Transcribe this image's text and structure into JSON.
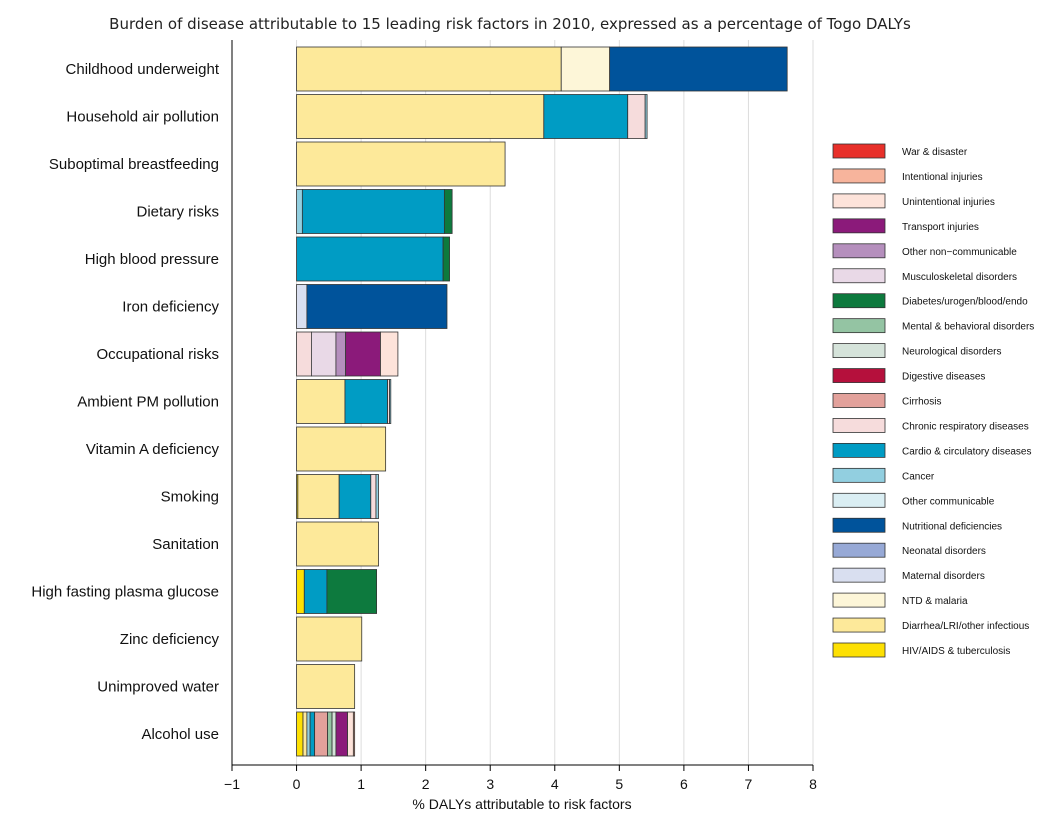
{
  "chart_data": {
    "type": "bar",
    "orientation": "horizontal",
    "stacked": true,
    "title": "Burden of disease attributable to 15 leading risk factors in 2010, expressed as a percentage of Togo DALYs",
    "xlabel": "% DALYs attributable to risk factors",
    "ylabel": "",
    "xlim": [
      -1,
      8
    ],
    "xticks": [
      -1,
      0,
      1,
      2,
      3,
      4,
      5,
      6,
      7,
      8
    ],
    "grid": "vertical",
    "legend_position": "right",
    "categories": [
      "Childhood underweight",
      "Household air pollution",
      "Suboptimal breastfeeding",
      "Dietary risks",
      "High blood pressure",
      "Iron deficiency",
      "Occupational risks",
      "Ambient PM pollution",
      "Vitamin A deficiency",
      "Smoking",
      "Sanitation",
      "High fasting plasma glucose",
      "Zinc deficiency",
      "Unimproved water",
      "Alcohol use"
    ],
    "legend": [
      {
        "name": "War & disaster",
        "color": "#e8302a"
      },
      {
        "name": "Intentional injuries",
        "color": "#f7b49c"
      },
      {
        "name": "Unintentional injuries",
        "color": "#fde3da"
      },
      {
        "name": "Transport injuries",
        "color": "#8b1a7a"
      },
      {
        "name": "Other non−communicable",
        "color": "#b58fbd"
      },
      {
        "name": "Musculoskeletal disorders",
        "color": "#e9d9e7"
      },
      {
        "name": "Diabetes/urogen/blood/endo",
        "color": "#0d7a3e"
      },
      {
        "name": "Mental & behavioral disorders",
        "color": "#94c4a3"
      },
      {
        "name": "Neurological disorders",
        "color": "#d5e3da"
      },
      {
        "name": "Digestive diseases",
        "color": "#b5103c"
      },
      {
        "name": "Cirrhosis",
        "color": "#e2a19b"
      },
      {
        "name": "Chronic respiratory diseases",
        "color": "#f6dcdc"
      },
      {
        "name": "Cardio & circulatory diseases",
        "color": "#009cc4"
      },
      {
        "name": "Cancer",
        "color": "#92cfe0"
      },
      {
        "name": "Other communicable",
        "color": "#daeef3"
      },
      {
        "name": "Nutritional deficiencies",
        "color": "#00539b"
      },
      {
        "name": "Neonatal disorders",
        "color": "#97a9d6"
      },
      {
        "name": "Maternal disorders",
        "color": "#d9dff0"
      },
      {
        "name": "NTD & malaria",
        "color": "#fdf6d8"
      },
      {
        "name": "Diarrhea/LRI/other infectious",
        "color": "#fde99a"
      },
      {
        "name": "HIV/AIDS & tuberculosis",
        "color": "#fde003"
      }
    ],
    "bars": [
      {
        "category": "Childhood underweight",
        "segments": [
          {
            "series": "Diarrhea/LRI/other infectious",
            "value": 4.1
          },
          {
            "series": "NTD & malaria",
            "value": 0.75
          },
          {
            "series": "Nutritional deficiencies",
            "value": 2.75
          }
        ]
      },
      {
        "category": "Household air pollution",
        "segments": [
          {
            "series": "Diarrhea/LRI/other infectious",
            "value": 3.83
          },
          {
            "series": "Cardio & circulatory diseases",
            "value": 1.3
          },
          {
            "series": "Chronic respiratory diseases",
            "value": 0.27
          },
          {
            "series": "Cancer",
            "value": 0.03
          }
        ]
      },
      {
        "category": "Suboptimal breastfeeding",
        "segments": [
          {
            "series": "Diarrhea/LRI/other infectious",
            "value": 3.23
          }
        ]
      },
      {
        "category": "Dietary risks",
        "segments": [
          {
            "series": "Cancer",
            "value": 0.09
          },
          {
            "series": "Cardio & circulatory diseases",
            "value": 2.2
          },
          {
            "series": "Diabetes/urogen/blood/endo",
            "value": 0.12
          }
        ]
      },
      {
        "category": "High blood pressure",
        "segments": [
          {
            "series": "Cardio & circulatory diseases",
            "value": 2.27
          },
          {
            "series": "Diabetes/urogen/blood/endo",
            "value": 0.1
          }
        ]
      },
      {
        "category": "Iron deficiency",
        "segments": [
          {
            "series": "Maternal disorders",
            "value": 0.16
          },
          {
            "series": "Nutritional deficiencies",
            "value": 2.17
          }
        ]
      },
      {
        "category": "Occupational risks",
        "segments": [
          {
            "series": "Chronic respiratory diseases",
            "value": 0.23
          },
          {
            "series": "Musculoskeletal disorders",
            "value": 0.38
          },
          {
            "series": "Other non−communicable",
            "value": 0.15
          },
          {
            "series": "Transport injuries",
            "value": 0.54
          },
          {
            "series": "Unintentional injuries",
            "value": 0.27
          }
        ]
      },
      {
        "category": "Ambient PM pollution",
        "segments": [
          {
            "series": "Diarrhea/LRI/other infectious",
            "value": 0.75
          },
          {
            "series": "Cardio & circulatory diseases",
            "value": 0.66
          },
          {
            "series": "Chronic respiratory diseases",
            "value": 0.03
          },
          {
            "series": "Cancer",
            "value": 0.02
          }
        ]
      },
      {
        "category": "Vitamin A deficiency",
        "segments": [
          {
            "series": "Diarrhea/LRI/other infectious",
            "value": 1.38
          }
        ]
      },
      {
        "category": "Smoking",
        "segments": [
          {
            "series": "HIV/AIDS & tuberculosis",
            "value": 0.02
          },
          {
            "series": "Diarrhea/LRI/other infectious",
            "value": 0.64
          },
          {
            "series": "Cardio & circulatory diseases",
            "value": 0.49
          },
          {
            "series": "Chronic respiratory diseases",
            "value": 0.08
          },
          {
            "series": "Cancer",
            "value": 0.04
          }
        ]
      },
      {
        "category": "Sanitation",
        "segments": [
          {
            "series": "Diarrhea/LRI/other infectious",
            "value": 1.27
          }
        ]
      },
      {
        "category": "High fasting plasma glucose",
        "segments": [
          {
            "series": "HIV/AIDS & tuberculosis",
            "value": 0.12
          },
          {
            "series": "Cardio & circulatory diseases",
            "value": 0.35
          },
          {
            "series": "Diabetes/urogen/blood/endo",
            "value": 0.77
          }
        ]
      },
      {
        "category": "Zinc deficiency",
        "segments": [
          {
            "series": "Diarrhea/LRI/other infectious",
            "value": 1.01
          }
        ]
      },
      {
        "category": "Unimproved water",
        "segments": [
          {
            "series": "Diarrhea/LRI/other infectious",
            "value": 0.9
          }
        ]
      },
      {
        "category": "Alcohol use",
        "segments": [
          {
            "series": "HIV/AIDS & tuberculosis",
            "value": 0.1
          },
          {
            "series": "Diarrhea/LRI/other infectious",
            "value": 0.06
          },
          {
            "series": "Cancer",
            "value": 0.05
          },
          {
            "series": "Cardio & circulatory diseases",
            "value": 0.07
          },
          {
            "series": "Cirrhosis",
            "value": 0.2
          },
          {
            "series": "Mental & behavioral disorders",
            "value": 0.07
          },
          {
            "series": "Neurological disorders",
            "value": 0.06
          },
          {
            "series": "Transport injuries",
            "value": 0.18
          },
          {
            "series": "Unintentional injuries",
            "value": 0.09
          },
          {
            "series": "Intentional injuries",
            "value": 0.02
          }
        ]
      }
    ]
  }
}
